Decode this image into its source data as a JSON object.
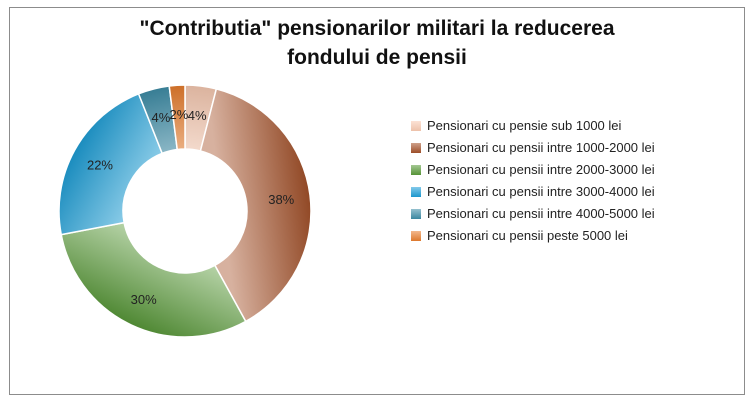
{
  "chart_data": {
    "type": "donut",
    "title_lines": [
      "\"Contributia\" pensionarilor militari la reducerea",
      "fondului de pensii"
    ],
    "legend_position": "right",
    "slices": [
      {
        "label": "Pensionari cu pensie sub 1000 lei",
        "value": 4,
        "display": "4%",
        "color": "#f9cbb3"
      },
      {
        "label": "Pensionari cu pensii intre 1000-2000 lei",
        "value": 38,
        "display": "38%",
        "color": "#a5522a"
      },
      {
        "label": "Pensionari cu pensii intre 2000-3000 lei",
        "value": 30,
        "display": "30%",
        "color": "#5a9b3a"
      },
      {
        "label": "Pensionari cu pensii intre 3000-4000 lei",
        "value": 22,
        "display": "22%",
        "color": "#1d9fd8"
      },
      {
        "label": "Pensionari cu pensii intre 4000-5000 lei",
        "value": 4,
        "display": "4%",
        "color": "#3f8ea8"
      },
      {
        "label": "Pensionari cu pensii  peste 5000 lei",
        "value": 2,
        "display": "2%",
        "color": "#e97e2e"
      }
    ]
  }
}
